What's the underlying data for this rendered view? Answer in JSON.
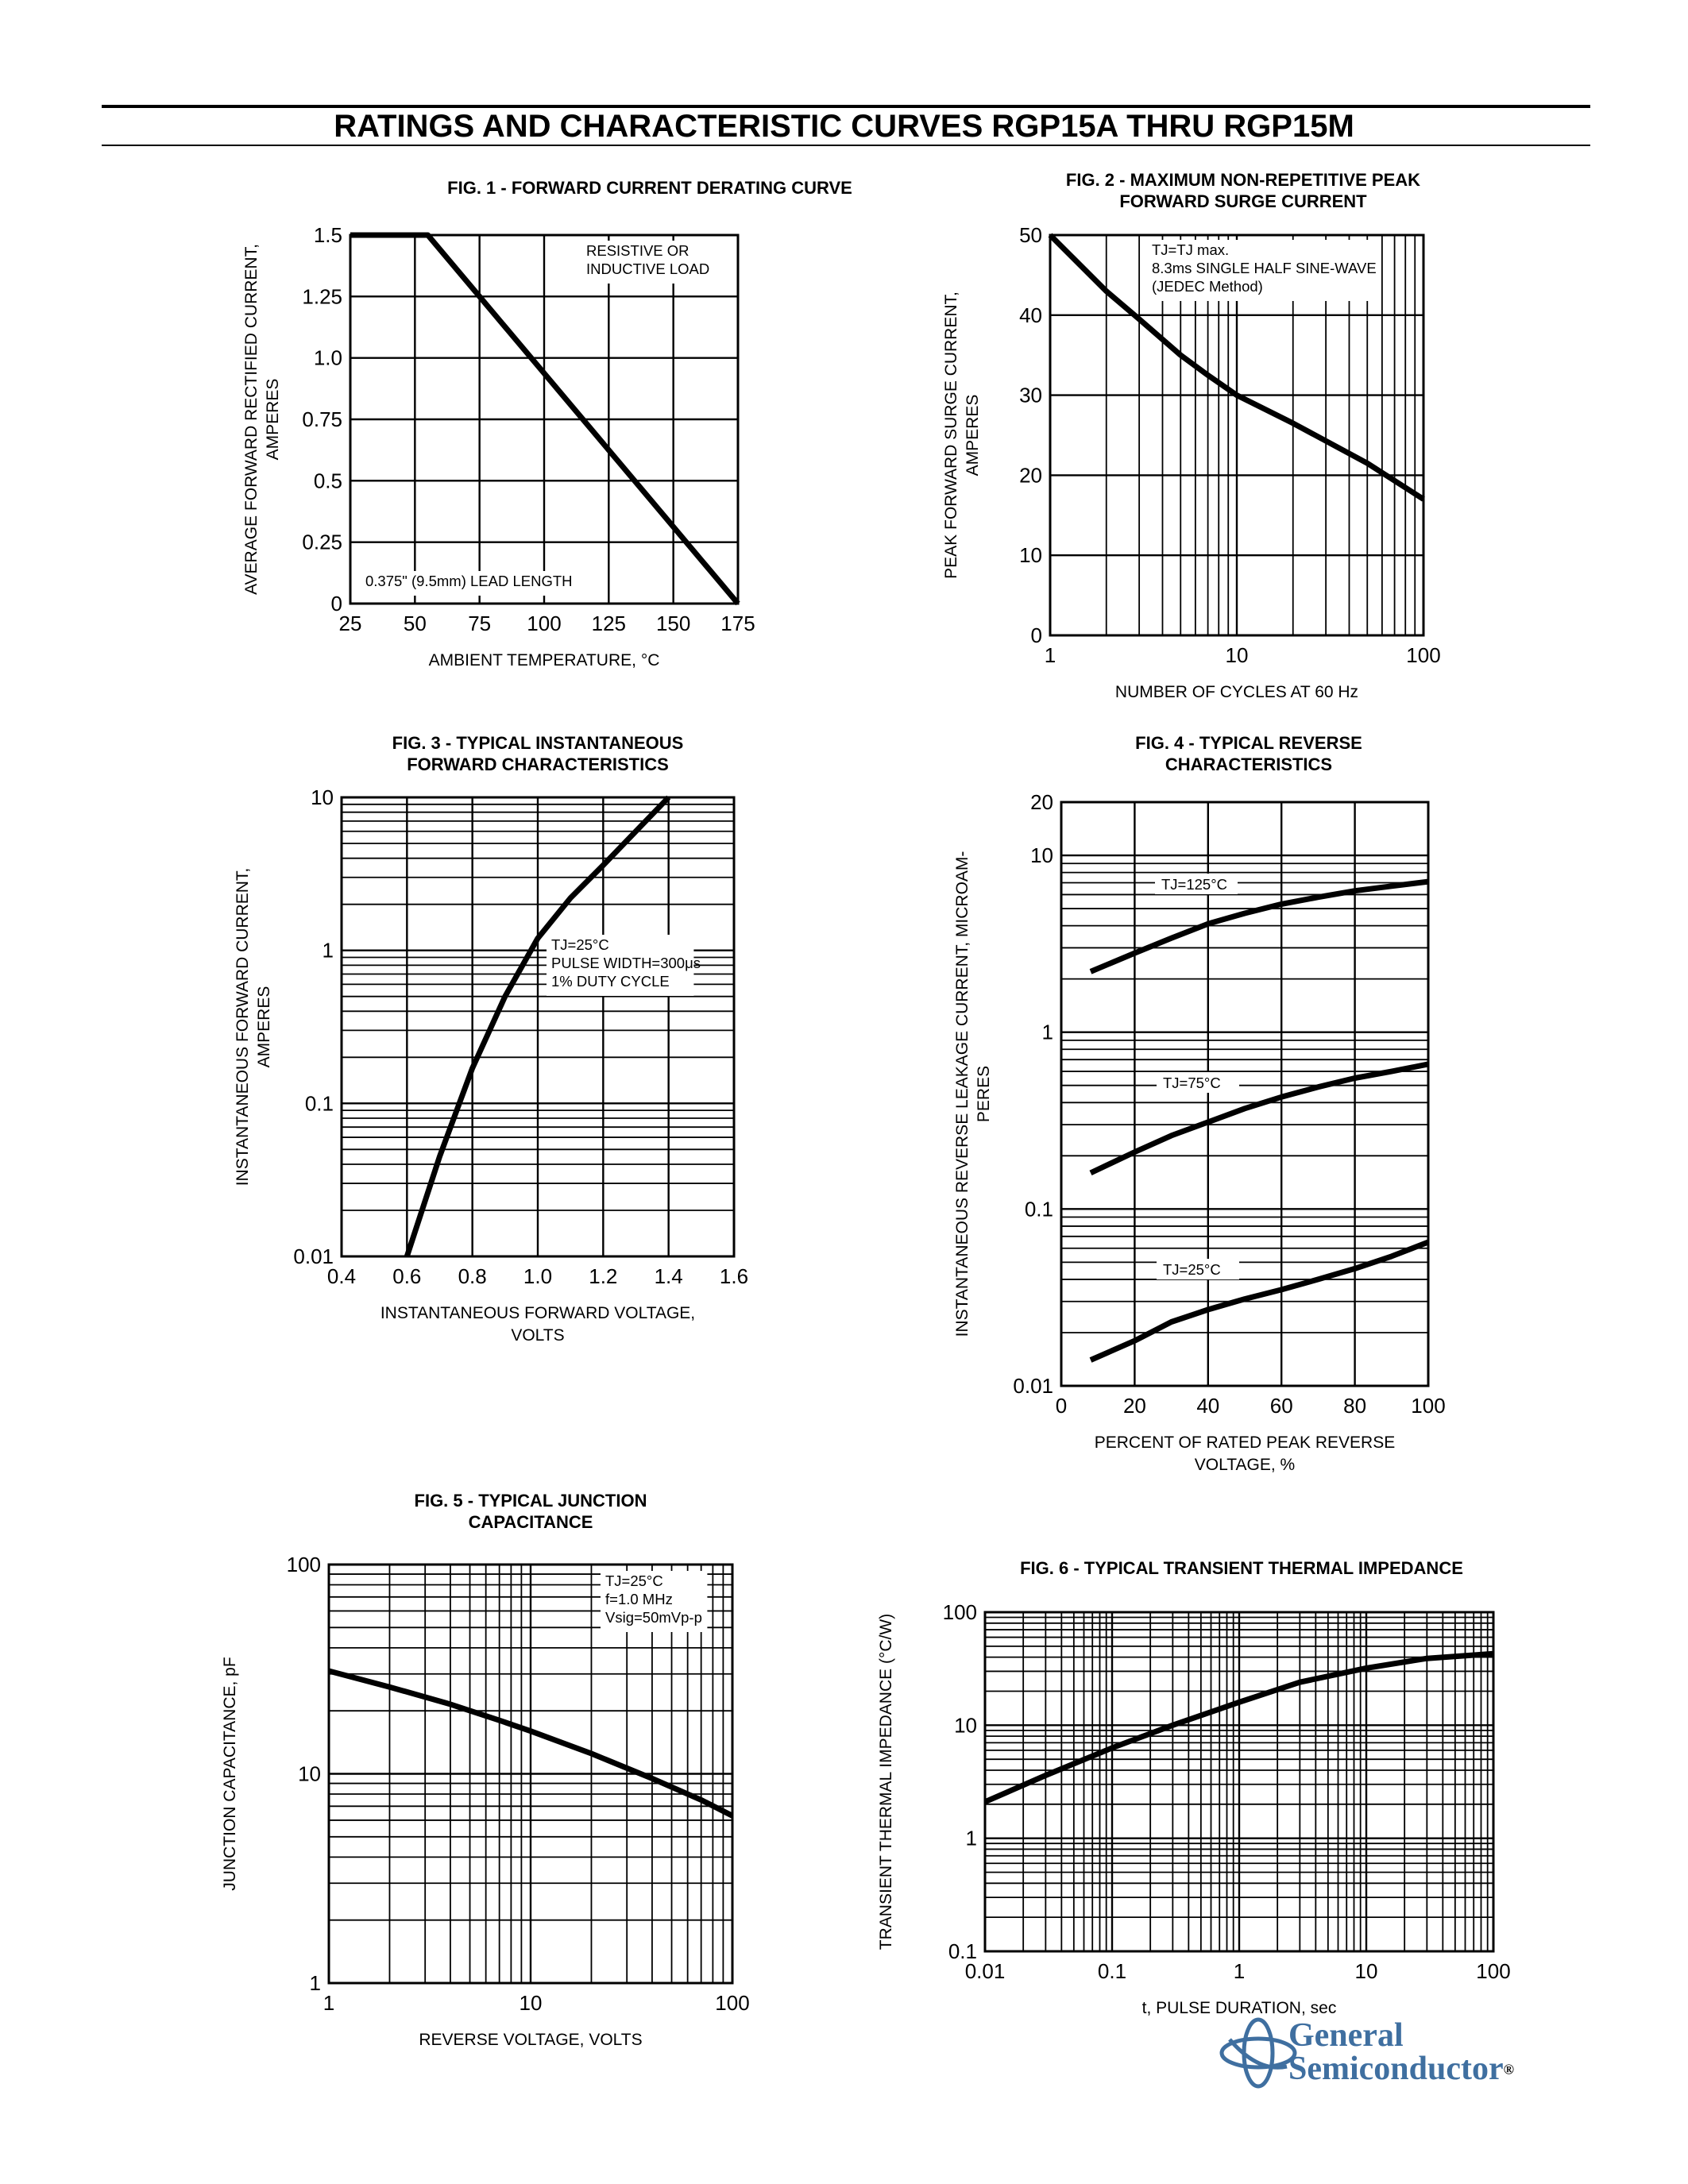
{
  "page": {
    "title": "RATINGS AND CHARACTERISTIC CURVES RGP15A THRU RGP15M",
    "logo": {
      "line1": "General",
      "line2": "Semiconductor",
      "mark": "®",
      "color": "#3f6fa0"
    }
  },
  "chart_data": [
    {
      "id": "fig1",
      "type": "line",
      "title": [
        "FIG. 1 - FORWARD CURRENT DERATING CURVE"
      ],
      "xlabel": [
        "AMBIENT TEMPERATURE, °C"
      ],
      "ylabel": [
        "AVERAGE FORWARD RECTIFIED CURRENT,",
        "AMPERES"
      ],
      "x_scale": "linear",
      "y_scale": "linear",
      "xlim": [
        25,
        175
      ],
      "ylim": [
        0,
        1.5
      ],
      "x_ticks": [
        25,
        50,
        75,
        100,
        125,
        150,
        175
      ],
      "x_tick_labels": [
        "25",
        "50",
        "75",
        "100",
        "125",
        "150",
        "175"
      ],
      "y_ticks": [
        0,
        0.25,
        0.5,
        0.75,
        1.0,
        1.25,
        1.5
      ],
      "y_tick_labels": [
        "0",
        "0.25",
        "0.5",
        "0.75",
        "1.0",
        "1.25",
        "1.5"
      ],
      "grid": true,
      "annotations": [
        {
          "id": "load-note",
          "lines": [
            "RESISTIVE OR",
            "INDUCTIVE LOAD"
          ]
        },
        {
          "id": "lead-note",
          "lines": [
            "0.375\" (9.5mm) LEAD LENGTH"
          ]
        }
      ],
      "series": [
        {
          "x": [
            25,
            55,
            175
          ],
          "y": [
            1.5,
            1.5,
            0
          ]
        }
      ]
    },
    {
      "id": "fig2",
      "type": "line",
      "title": [
        "FIG. 2 - MAXIMUM NON-REPETITIVE PEAK",
        "FORWARD SURGE CURRENT"
      ],
      "xlabel": [
        "NUMBER OF CYCLES AT 60 Hz"
      ],
      "ylabel": [
        "PEAK FORWARD SURGE CURRENT,",
        "AMPERES"
      ],
      "x_scale": "log",
      "y_scale": "linear",
      "xlim": [
        1,
        100
      ],
      "ylim": [
        0,
        50
      ],
      "x_ticks": [
        1,
        10,
        100
      ],
      "x_tick_labels": [
        "1",
        "10",
        "100"
      ],
      "y_ticks": [
        0,
        10,
        20,
        30,
        40,
        50
      ],
      "y_tick_labels": [
        "0",
        "10",
        "20",
        "30",
        "40",
        "50"
      ],
      "grid": true,
      "annotations": [
        {
          "id": "surge-note",
          "lines": [
            "TJ=TJ max.",
            "8.3ms SINGLE HALF SINE-WAVE",
            "(JEDEC Method)"
          ]
        }
      ],
      "series": [
        {
          "x": [
            1,
            2,
            3,
            5,
            7,
            10,
            20,
            50,
            100
          ],
          "y": [
            50,
            43,
            39.5,
            35,
            32.5,
            30,
            26.5,
            21.5,
            17
          ]
        }
      ]
    },
    {
      "id": "fig3",
      "type": "line",
      "title": [
        "FIG. 3 - TYPICAL INSTANTANEOUS",
        "FORWARD CHARACTERISTICS"
      ],
      "xlabel": [
        "INSTANTANEOUS FORWARD VOLTAGE,",
        "VOLTS"
      ],
      "ylabel": [
        "INSTANTANEOUS FORWARD CURRENT,",
        "AMPERES"
      ],
      "x_scale": "linear",
      "y_scale": "log",
      "xlim": [
        0.4,
        1.6
      ],
      "ylim": [
        0.01,
        10
      ],
      "x_ticks": [
        0.4,
        0.6,
        0.8,
        1.0,
        1.2,
        1.4,
        1.6
      ],
      "x_tick_labels": [
        "0.4",
        "0.6",
        "0.8",
        "1.0",
        "1.2",
        "1.4",
        "1.6"
      ],
      "y_ticks": [
        0.01,
        0.1,
        1,
        10
      ],
      "y_tick_labels": [
        "0.01",
        "0.1",
        "1",
        "10"
      ],
      "grid": true,
      "annotations": [
        {
          "id": "pulse-note",
          "lines": [
            "TJ=25°C",
            "PULSE WIDTH=300μs",
            "1% DUTY CYCLE"
          ]
        }
      ],
      "series": [
        {
          "x": [
            0.6,
            0.7,
            0.8,
            0.9,
            1.0,
            1.1,
            1.2,
            1.3,
            1.4
          ],
          "y": [
            0.01,
            0.045,
            0.17,
            0.5,
            1.2,
            2.2,
            3.6,
            6.0,
            10
          ]
        }
      ]
    },
    {
      "id": "fig4",
      "type": "line",
      "title": [
        "FIG. 4 - TYPICAL REVERSE",
        "CHARACTERISTICS"
      ],
      "xlabel": [
        "PERCENT OF RATED PEAK REVERSE",
        "VOLTAGE, %"
      ],
      "ylabel": [
        "INSTANTANEOUS REVERSE LEAKAGE CURRENT, MICROAM-",
        "PERES"
      ],
      "x_scale": "linear",
      "y_scale": "log",
      "xlim": [
        0,
        100
      ],
      "ylim": [
        0.01,
        20
      ],
      "x_ticks": [
        0,
        20,
        40,
        60,
        80,
        100
      ],
      "x_tick_labels": [
        "0",
        "20",
        "40",
        "60",
        "80",
        "100"
      ],
      "y_ticks": [
        0.01,
        0.1,
        1,
        10,
        20
      ],
      "y_tick_labels": [
        "0.01",
        "0.1",
        "1",
        "10",
        "20"
      ],
      "grid": true,
      "series": [
        {
          "name": "TJ=125°C",
          "x": [
            8,
            20,
            30,
            40,
            50,
            60,
            70,
            80,
            90,
            100
          ],
          "y": [
            2.2,
            2.8,
            3.4,
            4.1,
            4.7,
            5.3,
            5.8,
            6.3,
            6.7,
            7.1
          ]
        },
        {
          "name": "TJ=75°C",
          "x": [
            8,
            20,
            30,
            40,
            50,
            60,
            70,
            80,
            90,
            100
          ],
          "y": [
            0.16,
            0.21,
            0.26,
            0.31,
            0.37,
            0.43,
            0.49,
            0.55,
            0.6,
            0.66
          ]
        },
        {
          "name": "TJ=25°C",
          "x": [
            8,
            20,
            30,
            40,
            50,
            60,
            70,
            80,
            90,
            100
          ],
          "y": [
            0.014,
            0.018,
            0.023,
            0.027,
            0.031,
            0.035,
            0.04,
            0.046,
            0.054,
            0.065
          ]
        }
      ]
    },
    {
      "id": "fig5",
      "type": "line",
      "title": [
        "FIG. 5 - TYPICAL JUNCTION",
        "CAPACITANCE"
      ],
      "xlabel": [
        "REVERSE VOLTAGE, VOLTS"
      ],
      "ylabel": [
        "JUNCTION CAPACITANCE, pF"
      ],
      "x_scale": "log",
      "y_scale": "log",
      "xlim": [
        1,
        100
      ],
      "ylim": [
        1,
        100
      ],
      "x_ticks": [
        1,
        10,
        100
      ],
      "x_tick_labels": [
        "1",
        "10",
        "100"
      ],
      "y_ticks": [
        1,
        10,
        100
      ],
      "y_tick_labels": [
        "1",
        "10",
        "100"
      ],
      "grid": true,
      "annotations": [
        {
          "id": "cap-note",
          "lines": [
            "TJ=25°C",
            "f=1.0 MHz",
            "Vsig=50mVp-p"
          ]
        }
      ],
      "series": [
        {
          "x": [
            1,
            2,
            4,
            7,
            10,
            20,
            40,
            70,
            100
          ],
          "y": [
            31,
            26,
            21.5,
            18,
            16,
            12.5,
            9.5,
            7.5,
            6.3
          ]
        }
      ]
    },
    {
      "id": "fig6",
      "type": "line",
      "title": [
        "FIG. 6 - TYPICAL TRANSIENT THERMAL IMPEDANCE"
      ],
      "xlabel": [
        "t, PULSE DURATION, sec"
      ],
      "ylabel": [
        "TRANSIENT THERMAL IMPEDANCE (°C/W)"
      ],
      "x_scale": "log",
      "y_scale": "log",
      "xlim": [
        0.01,
        100
      ],
      "ylim": [
        0.1,
        100
      ],
      "x_ticks": [
        0.01,
        0.1,
        1,
        10,
        100
      ],
      "x_tick_labels": [
        "0.01",
        "0.1",
        "1",
        "10",
        "100"
      ],
      "y_ticks": [
        0.1,
        1,
        10,
        100
      ],
      "y_tick_labels": [
        "0.1",
        "1",
        "10",
        "100"
      ],
      "grid": true,
      "series": [
        {
          "x": [
            0.01,
            0.03,
            0.1,
            0.3,
            1,
            3,
            10,
            30,
            100
          ],
          "y": [
            2.1,
            3.6,
            6.3,
            10,
            16,
            24,
            32,
            39,
            43
          ]
        }
      ]
    }
  ]
}
